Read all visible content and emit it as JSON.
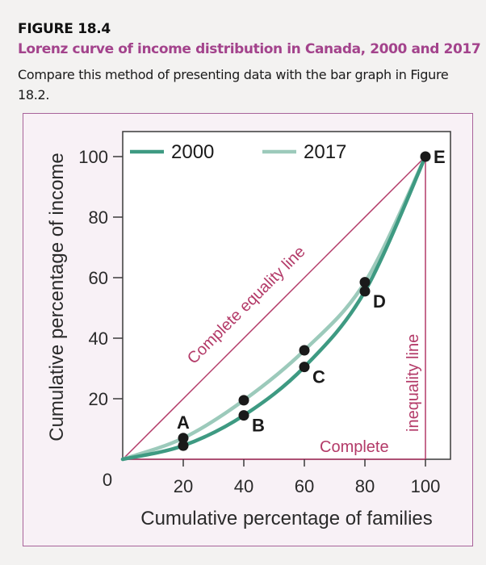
{
  "header": {
    "figure_label": "FIGURE 18.4",
    "title": "Lorenz curve of income distribution in Canada, 2000 and 2017",
    "caption": "Compare this method of presenting data with the bar graph in Figure 18.2."
  },
  "colors": {
    "series_2000": "#3e9a82",
    "series_2017": "#9ccabb",
    "reference_lines": "#b33a68",
    "title_accent": "#a3438c",
    "frame_border": "#a8639a",
    "frame_background": "#f8f1f6"
  },
  "chart_data": {
    "type": "line",
    "title": "Lorenz curve of income distribution in Canada, 2000 and 2017",
    "xlabel": "Cumulative percentage of families",
    "ylabel": "Cumulative percentage of income",
    "xlim": [
      0,
      100
    ],
    "ylim": [
      0,
      100
    ],
    "x_ticks": [
      20,
      40,
      60,
      80,
      100
    ],
    "y_ticks": [
      20,
      40,
      60,
      80,
      100
    ],
    "origin_label": "0",
    "grid": false,
    "legend": {
      "placement": "top",
      "entries": [
        "2000",
        "2017"
      ]
    },
    "x": [
      0,
      20,
      40,
      60,
      80,
      100
    ],
    "series": [
      {
        "name": "2000",
        "values": [
          0,
          4.5,
          14.5,
          30.5,
          55.5,
          100
        ]
      },
      {
        "name": "2017",
        "values": [
          0,
          7,
          19.5,
          36,
          58.5,
          100
        ]
      }
    ],
    "points": [
      {
        "label": "A",
        "x": 20
      },
      {
        "label": "B",
        "x": 40
      },
      {
        "label": "C",
        "x": 60
      },
      {
        "label": "D",
        "x": 80
      },
      {
        "label": "E",
        "x": 100,
        "y": 100
      }
    ],
    "annotations": {
      "equality_line": "Complete equality line",
      "inequality_line_part1": "Complete",
      "inequality_line_part2": "inequality line"
    }
  }
}
